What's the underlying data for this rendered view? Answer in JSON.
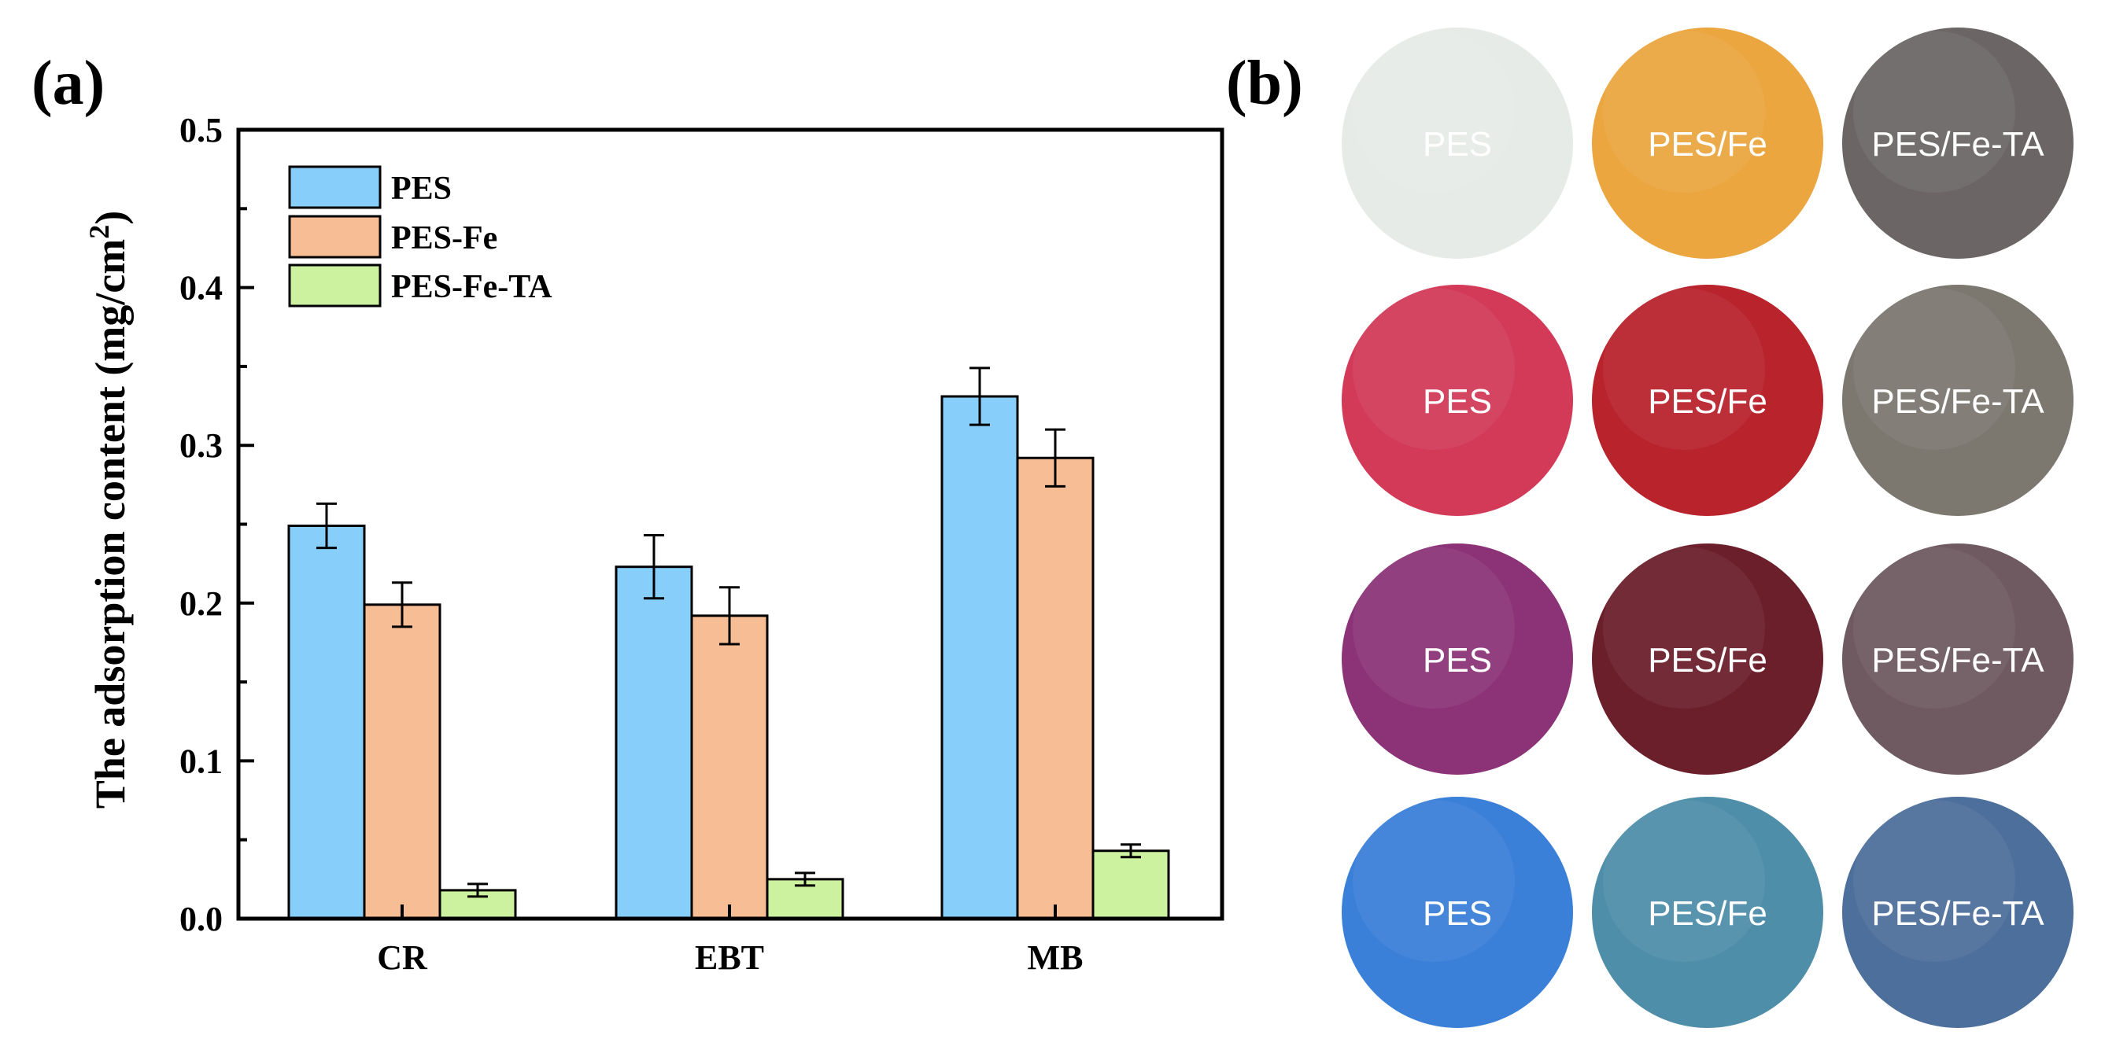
{
  "panel_a": {
    "label": "(a)"
  },
  "panel_b": {
    "label": "(b)"
  },
  "chart_data": {
    "type": "bar",
    "title": "",
    "xlabel": "",
    "ylabel": "The adsorption content (mg/cm",
    "ylabel_superscript": "2",
    "ylabel_close": ")",
    "ylim": [
      0,
      0.5
    ],
    "yticks": [
      0.0,
      0.1,
      0.2,
      0.3,
      0.4,
      0.5
    ],
    "ytick_labels": [
      "0.0",
      "0.1",
      "0.2",
      "0.3",
      "0.4",
      "0.5"
    ],
    "categories": [
      "CR",
      "EBT",
      "MB"
    ],
    "legend_position": "top-left",
    "series": [
      {
        "name": "PES",
        "color": "#87cefa",
        "values": [
          0.249,
          0.223,
          0.331
        ],
        "errors": [
          0.014,
          0.02,
          0.018
        ]
      },
      {
        "name": "PES-Fe",
        "color": "#f7bd94",
        "values": [
          0.199,
          0.192,
          0.292
        ],
        "errors": [
          0.014,
          0.018,
          0.018
        ]
      },
      {
        "name": "PES-Fe-TA",
        "color": "#ccf2a0",
        "values": [
          0.018,
          0.025,
          0.043
        ],
        "errors": [
          0.004,
          0.004,
          0.004
        ]
      }
    ]
  },
  "membranes": [
    [
      {
        "label": "PES",
        "color": "#e6ebe8"
      },
      {
        "label": "PES/Fe",
        "color": "#eba640"
      },
      {
        "label": "PES/Fe-TA",
        "color": "#6b6665"
      }
    ],
    [
      {
        "label": "PES",
        "color": "#d23a58"
      },
      {
        "label": "PES/Fe",
        "color": "#b8232c"
      },
      {
        "label": "PES/Fe-TA",
        "color": "#7c7870"
      }
    ],
    [
      {
        "label": "PES",
        "color": "#8c3378"
      },
      {
        "label": "PES/Fe",
        "color": "#6b1f2b"
      },
      {
        "label": "PES/Fe-TA",
        "color": "#6e5a60"
      }
    ],
    [
      {
        "label": "PES",
        "color": "#3a7fd8"
      },
      {
        "label": "PES/Fe",
        "color": "#4e8ea8"
      },
      {
        "label": "PES/Fe-TA",
        "color": "#4d6f9c"
      }
    ]
  ]
}
